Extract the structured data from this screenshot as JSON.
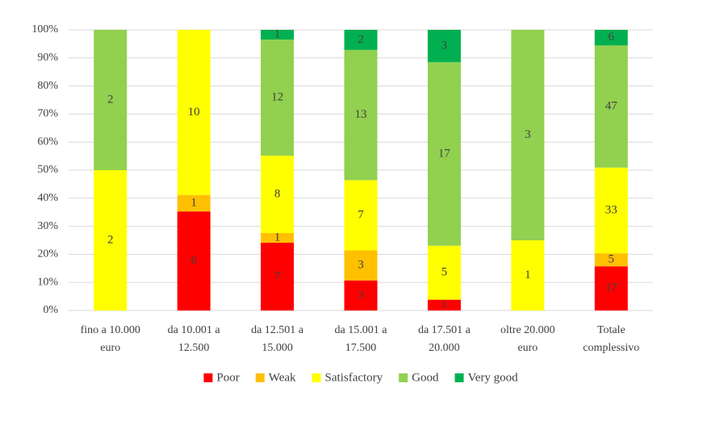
{
  "chart_data": {
    "type": "bar",
    "stacking": "percent",
    "categories": [
      "fino a 10.000 euro",
      "da 10.001 a 12.500",
      "da 12.501 a 15.000",
      "da 15.001 a 17.500",
      "da 17.501 a 20.000",
      "oltre 20.000 euro",
      "Totale complessivo"
    ],
    "series": [
      {
        "name": "Poor",
        "color": "#ff0000",
        "values": [
          0,
          6,
          7,
          3,
          1,
          0,
          17
        ]
      },
      {
        "name": "Weak",
        "color": "#ffc000",
        "values": [
          0,
          1,
          1,
          3,
          0,
          0,
          5
        ]
      },
      {
        "name": "Satisfactory",
        "color": "#ffff00",
        "values": [
          2,
          10,
          8,
          7,
          5,
          1,
          33
        ]
      },
      {
        "name": "Good",
        "color": "#92d050",
        "values": [
          2,
          0,
          12,
          13,
          17,
          3,
          47
        ]
      },
      {
        "name": "Very good",
        "color": "#00b050",
        "values": [
          0,
          0,
          1,
          2,
          3,
          0,
          6
        ]
      }
    ],
    "ylim": [
      0,
      100
    ],
    "yticks": [
      {
        "value": 0,
        "label": "0%"
      },
      {
        "value": 10,
        "label": "10%"
      },
      {
        "value": 20,
        "label": "20%"
      },
      {
        "value": 30,
        "label": "30%"
      },
      {
        "value": 40,
        "label": "40%"
      },
      {
        "value": 50,
        "label": "50%"
      },
      {
        "value": 60,
        "label": "60%"
      },
      {
        "value": 70,
        "label": "70%"
      },
      {
        "value": 80,
        "label": "80%"
      },
      {
        "value": 90,
        "label": "90%"
      },
      {
        "value": 100,
        "label": "100%"
      }
    ],
    "grid": true,
    "legend": "bottom"
  }
}
